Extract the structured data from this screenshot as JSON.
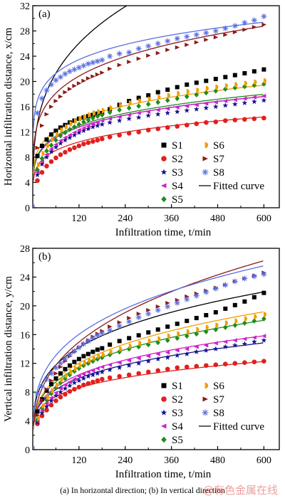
{
  "chart_data": [
    {
      "type": "scatter",
      "panel_label": "(a)",
      "xlabel": "Infiltration time, t/min",
      "ylabel": "Horizontal infiltration distance, x/cm",
      "xlim": [
        0,
        640
      ],
      "ylim": [
        0,
        32
      ],
      "xticks": [
        120,
        240,
        360,
        480,
        600
      ],
      "yticks": [
        0,
        4,
        8,
        12,
        16,
        20,
        24,
        28,
        32
      ],
      "grid": false,
      "legend_position": "bottom-right",
      "legend_fit_label": "Fitted curve",
      "series": [
        {
          "name": "S1",
          "marker": "square",
          "color": "#000000",
          "fit": [
            6.5,
            0.29
          ],
          "dense": [
            8.2,
            9.8,
            10.8,
            11.6,
            12.2,
            12.7,
            13.1,
            13.5,
            13.8,
            14.1,
            14.3,
            14.5,
            14.7,
            14.9,
            15.0
          ],
          "sparse": [
            15.6,
            16.3,
            16.9,
            17.4,
            17.8,
            18.3,
            18.7,
            19.1,
            19.5,
            19.8,
            20.1,
            20.4,
            20.7,
            21.0,
            21.3,
            21.6,
            21.9
          ]
        },
        {
          "name": "S2",
          "marker": "circle",
          "color": "#e0201d",
          "fit": [
            4.0,
            0.2
          ],
          "dense": [
            4.3,
            5.6,
            6.6,
            7.3,
            7.9,
            8.4,
            8.8,
            9.2,
            9.5,
            9.8,
            10.1,
            10.3,
            10.5,
            10.7,
            10.9
          ],
          "sparse": [
            11.2,
            11.5,
            11.8,
            12.0,
            12.3,
            12.5,
            12.7,
            12.9,
            13.1,
            13.3,
            13.5,
            13.6,
            13.8,
            13.9,
            14.0,
            14.1,
            14.2
          ]
        },
        {
          "name": "S3",
          "marker": "star",
          "color": "#14148c",
          "fit": [
            4.9,
            0.2
          ],
          "dense": [
            5.2,
            6.9,
            8.0,
            8.9,
            9.6,
            10.2,
            10.7,
            11.1,
            11.5,
            11.9,
            12.2,
            12.5,
            12.8,
            13.0,
            13.2
          ],
          "sparse": [
            13.5,
            13.8,
            14.1,
            14.3,
            14.6,
            14.8,
            15.0,
            15.2,
            15.4,
            15.6,
            15.8,
            16.0,
            16.2,
            16.4,
            16.6,
            16.8,
            17.0
          ]
        },
        {
          "name": "S4",
          "marker": "triangle-left",
          "color": "#d020c8",
          "fit": [
            4.9,
            0.2
          ],
          "dense": [
            5.6,
            7.3,
            8.4,
            9.3,
            10.0,
            10.6,
            11.1,
            11.5,
            11.9,
            12.3,
            12.6,
            12.9,
            13.2,
            13.5,
            13.8
          ],
          "sparse": [
            14.1,
            14.4,
            14.7,
            15.0,
            15.2,
            15.5,
            15.7,
            15.9,
            16.1,
            16.3,
            16.5,
            16.7,
            16.9,
            17.1,
            17.3,
            17.5,
            17.7
          ]
        },
        {
          "name": "S5",
          "marker": "diamond",
          "color": "#1f8c1f",
          "fit": [
            5.0,
            0.2
          ],
          "dense": [
            6.0,
            7.8,
            9.0,
            9.9,
            10.7,
            11.4,
            11.9,
            12.4,
            12.8,
            13.2,
            13.6,
            13.9,
            14.2,
            14.5,
            14.7
          ],
          "sparse": [
            15.1,
            15.5,
            15.8,
            16.1,
            16.4,
            16.7,
            17.0,
            17.3,
            17.6,
            17.9,
            18.2,
            18.5,
            18.8,
            19.0,
            19.2,
            19.4,
            19.6
          ]
        },
        {
          "name": "S6",
          "marker": "half-circle",
          "color": "#f0a000",
          "fit": [
            5.4,
            0.2
          ],
          "dense": [
            6.8,
            8.6,
            9.8,
            10.8,
            11.6,
            12.3,
            12.8,
            13.3,
            13.7,
            14.1,
            14.4,
            14.7,
            15.0,
            15.2,
            15.4
          ],
          "sparse": [
            15.8,
            16.2,
            16.6,
            16.9,
            17.2,
            17.5,
            17.8,
            18.1,
            18.4,
            18.6,
            18.9,
            19.1,
            19.3,
            19.5,
            19.7,
            19.9,
            20.1
          ]
        },
        {
          "name": "S7",
          "marker": "triangle-right",
          "color": "#8b1a1a",
          "fit": [
            8.0,
            0.2
          ],
          "dense": [
            9.5,
            13.0,
            14.8,
            16.0,
            16.9,
            17.6,
            18.3,
            18.8,
            19.3,
            19.7,
            20.1,
            20.5,
            20.8,
            21.1,
            21.4
          ],
          "sparse": [
            22.0,
            22.6,
            23.1,
            23.6,
            24.1,
            24.5,
            25.0,
            25.4,
            25.8,
            26.2,
            26.6,
            27.0,
            27.4,
            27.8,
            28.2,
            28.6,
            29.0
          ]
        },
        {
          "name": "S8",
          "marker": "asterisk",
          "color": "#5a6ee0",
          "fit": [
            12.0,
            0.14
          ],
          "dense": [
            15.0,
            17.3,
            18.6,
            19.5,
            20.2,
            20.7,
            21.2,
            21.6,
            21.9,
            22.2,
            22.5,
            22.8,
            23.0,
            23.2,
            23.4
          ],
          "sparse": [
            24.0,
            24.4,
            24.6,
            25.2,
            25.6,
            26.0,
            26.4,
            26.8,
            27.1,
            27.4,
            27.7,
            28.0,
            28.4,
            28.8,
            29.3,
            29.7,
            30.3
          ]
        }
      ]
    },
    {
      "type": "scatter",
      "panel_label": "(b)",
      "xlabel": "Infiltration time, t/min",
      "ylabel": "Vertical infiltration distance, y/cm",
      "xlim": [
        0,
        640
      ],
      "ylim": [
        0,
        28
      ],
      "xticks": [
        120,
        240,
        360,
        480,
        600
      ],
      "yticks": [
        0,
        4,
        8,
        12,
        16,
        20,
        24,
        28
      ],
      "grid": false,
      "legend_position": "bottom-right",
      "legend_fit_label": "Fitted curve",
      "series": [
        {
          "name": "S1",
          "marker": "square",
          "color": "#000000",
          "fit": [
            3.9,
            0.27
          ],
          "dense": [
            5.3,
            7.0,
            8.2,
            9.1,
            9.9,
            10.6,
            11.2,
            11.7,
            12.2,
            12.6,
            13.0,
            13.3,
            13.6,
            13.9,
            14.1
          ],
          "sparse": [
            14.6,
            15.1,
            15.5,
            15.9,
            16.3,
            16.7,
            17.1,
            17.5,
            17.9,
            18.3,
            18.7,
            19.1,
            19.6,
            20.1,
            20.6,
            21.2,
            21.8
          ]
        },
        {
          "name": "S2",
          "marker": "circle",
          "color": "#e0201d",
          "fit": [
            3.0,
            0.22
          ],
          "dense": [
            3.6,
            4.7,
            5.5,
            6.2,
            6.8,
            7.3,
            7.7,
            8.1,
            8.4,
            8.7,
            9.0,
            9.2,
            9.4,
            9.6,
            9.8
          ],
          "sparse": [
            10.0,
            10.2,
            10.4,
            10.6,
            10.8,
            11.0,
            11.2,
            11.4,
            11.5,
            11.6,
            11.7,
            11.8,
            11.9,
            12.0,
            12.1,
            12.2,
            12.3
          ]
        },
        {
          "name": "S3",
          "marker": "star",
          "color": "#14148c",
          "fit": [
            3.0,
            0.25
          ],
          "dense": [
            3.8,
            5.1,
            6.0,
            6.8,
            7.5,
            8.0,
            8.5,
            8.9,
            9.3,
            9.6,
            9.9,
            10.2,
            10.4,
            10.6,
            10.8
          ],
          "sparse": [
            11.1,
            11.4,
            11.7,
            12.0,
            12.3,
            12.6,
            12.8,
            13.1,
            13.3,
            13.6,
            13.8,
            14.0,
            14.3,
            14.5,
            14.7,
            15.0,
            15.2
          ]
        },
        {
          "name": "S4",
          "marker": "triangle-left",
          "color": "#d020c8",
          "fit": [
            3.0,
            0.26
          ],
          "dense": [
            4.0,
            5.4,
            6.4,
            7.2,
            7.9,
            8.5,
            9.0,
            9.4,
            9.8,
            10.2,
            10.5,
            10.8,
            11.0,
            11.3,
            11.5
          ],
          "sparse": [
            11.8,
            12.1,
            12.4,
            12.7,
            13.0,
            13.3,
            13.5,
            13.8,
            14.0,
            14.3,
            14.5,
            14.8,
            15.0,
            15.2,
            15.4,
            15.6,
            15.8
          ]
        },
        {
          "name": "S5",
          "marker": "diamond",
          "color": "#1f8c1f",
          "fit": [
            3.0,
            0.28
          ],
          "dense": [
            4.2,
            5.8,
            6.9,
            7.8,
            8.6,
            9.3,
            9.9,
            10.4,
            10.9,
            11.3,
            11.7,
            12.0,
            12.3,
            12.6,
            12.8
          ],
          "sparse": [
            13.2,
            13.6,
            14.0,
            14.3,
            14.6,
            14.9,
            15.2,
            15.5,
            15.8,
            16.1,
            16.4,
            16.7,
            17.0,
            17.3,
            17.6,
            17.9,
            18.2
          ]
        },
        {
          "name": "S6",
          "marker": "half-circle",
          "color": "#f0a000",
          "fit": [
            3.0,
            0.29
          ],
          "dense": [
            4.4,
            6.1,
            7.3,
            8.2,
            9.0,
            9.7,
            10.3,
            10.8,
            11.3,
            11.7,
            12.1,
            12.4,
            12.7,
            13.0,
            13.2
          ],
          "sparse": [
            13.6,
            14.0,
            14.4,
            14.8,
            15.1,
            15.4,
            15.8,
            16.1,
            16.4,
            16.7,
            17.0,
            17.3,
            17.6,
            17.9,
            18.2,
            18.5,
            18.8
          ]
        },
        {
          "name": "S7",
          "marker": "triangle-right",
          "color": "#8b1a1a",
          "fit": [
            2.8,
            0.35
          ],
          "dense": [
            4.8,
            6.9,
            8.4,
            9.6,
            10.6,
            11.5,
            12.3,
            13.0,
            13.6,
            14.2,
            14.7,
            15.2,
            15.7,
            16.1,
            16.5
          ],
          "sparse": [
            17.1,
            17.7,
            18.3,
            18.9,
            19.4,
            19.9,
            20.4,
            20.8,
            21.3,
            21.7,
            22.1,
            22.5,
            22.9,
            23.4,
            23.8,
            24.2,
            24.6
          ]
        },
        {
          "name": "S8",
          "marker": "asterisk",
          "color": "#5a6ee0",
          "fit": [
            4.0,
            0.29
          ],
          "dense": [
            7.8,
            8.8,
            9.8,
            10.6,
            11.4,
            12.0,
            12.6,
            13.2,
            13.7,
            14.2,
            14.7,
            15.1,
            15.5,
            15.9,
            16.2
          ],
          "sparse": [
            16.6,
            17.2,
            17.8,
            18.4,
            18.9,
            19.4,
            19.9,
            20.4,
            20.9,
            21.4,
            21.9,
            22.4,
            22.9,
            23.4,
            23.8,
            24.1,
            24.4
          ]
        }
      ]
    }
  ],
  "caption": "(a) In horizontal  direction; (b) In vertical direction",
  "watermark": "@有色金属在线"
}
